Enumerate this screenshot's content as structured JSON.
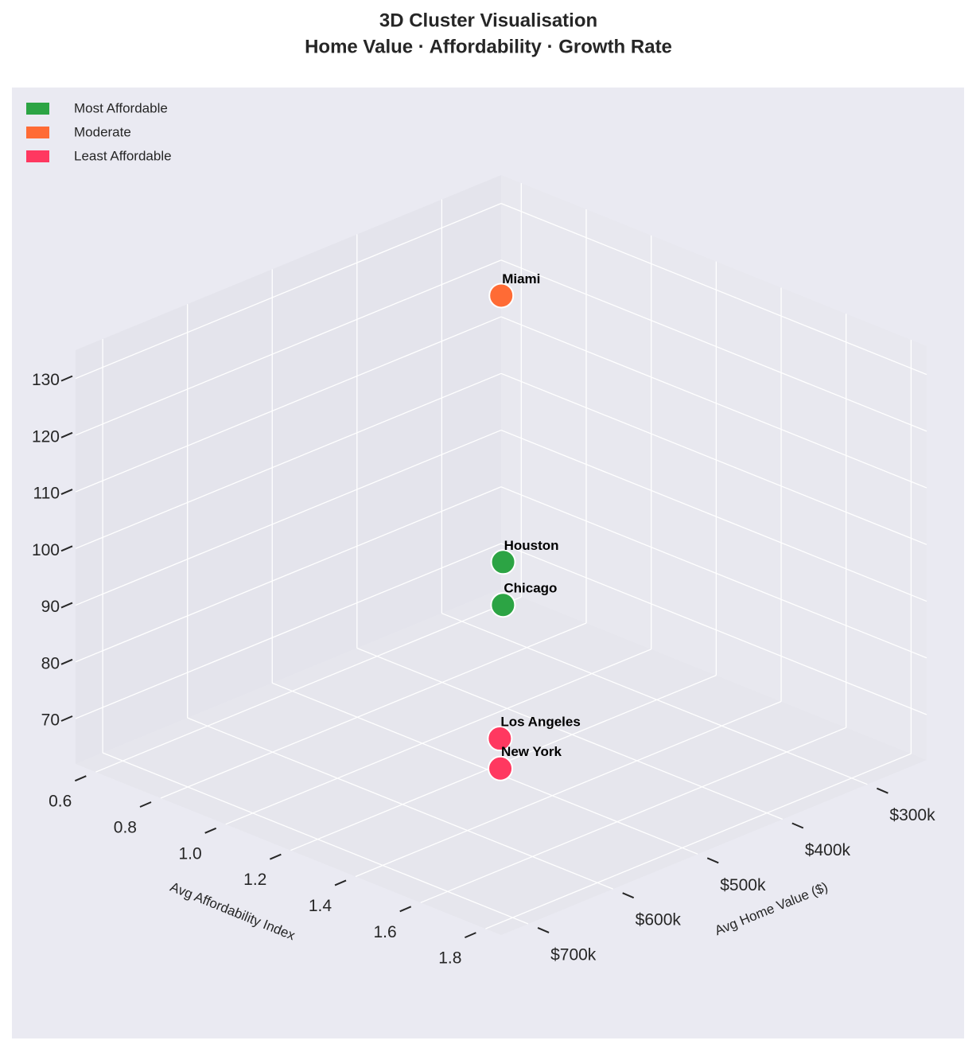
{
  "chart_data": {
    "type": "scatter3d",
    "title": "3D Cluster Visualisation",
    "subtitle": "Home Value · Affordability · Growth Rate",
    "xlabel": "Avg Home Value ($)",
    "ylabel": "Avg Affordability Index",
    "xlim": [
      230000,
      732000
    ],
    "ylim": [
      0.538,
      1.848
    ],
    "zlim": [
      62,
      135
    ],
    "xticks": [
      {
        "value": 300000,
        "label": "$300k"
      },
      {
        "value": 400000,
        "label": "$400k"
      },
      {
        "value": 500000,
        "label": "$500k"
      },
      {
        "value": 600000,
        "label": "$600k"
      },
      {
        "value": 700000,
        "label": "$700k"
      }
    ],
    "yticks": [
      0.6,
      0.8,
      {
        "value": 1.0,
        "label": "1.0"
      },
      1.2,
      1.4,
      1.6,
      1.8
    ],
    "zticks": [
      70,
      80,
      90,
      100,
      110,
      120,
      130
    ],
    "grid": true,
    "legend": "upper left",
    "series": [
      {
        "name": "Most Affordable",
        "color": "#2ca444",
        "labels": [
          "Houston",
          "Chicago"
        ],
        "x": [
          305000,
          355000
        ],
        "y": [
          0.74,
          0.87
        ],
        "z": [
          76,
          74.5
        ]
      },
      {
        "name": "Moderate",
        "color": "#ff6b35",
        "labels": [
          "Miami"
        ],
        "x": [
          380000
        ],
        "y": [
          0.93
        ],
        "z": [
          132
        ]
      },
      {
        "name": "Least Affordable",
        "color": "#ff3860",
        "labels": [
          "Los Angeles",
          "New York"
        ],
        "x": [
          650000,
          680000
        ],
        "y": [
          1.63,
          1.71
        ],
        "z": [
          86.6,
          85
        ]
      }
    ]
  }
}
